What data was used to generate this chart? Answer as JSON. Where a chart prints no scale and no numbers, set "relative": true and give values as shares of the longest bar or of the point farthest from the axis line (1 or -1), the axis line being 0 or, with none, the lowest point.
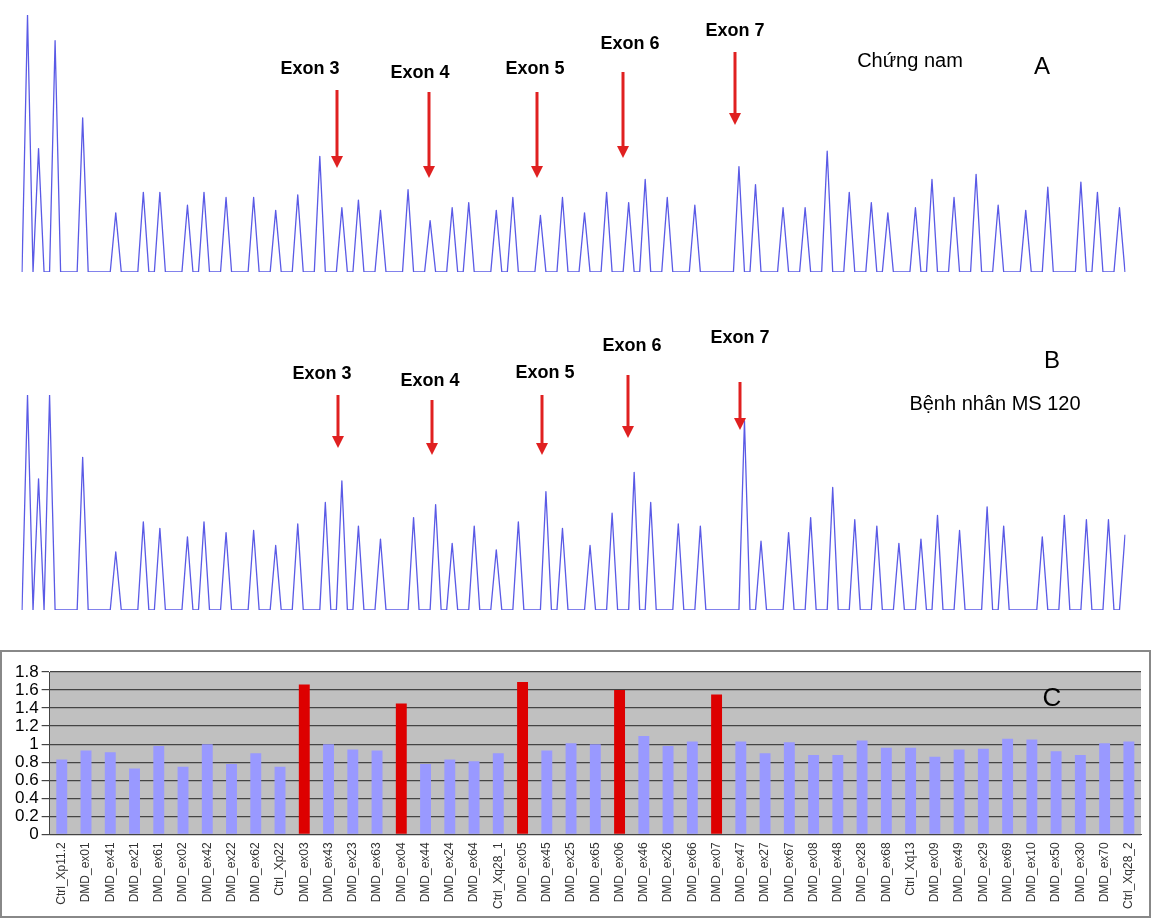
{
  "chart_data": [
    {
      "type": "line",
      "relative": true,
      "marker": "none",
      "grid": false,
      "legend": false,
      "categories": [
        null,
        null,
        null,
        null,
        null,
        null,
        null,
        null,
        null,
        null,
        null,
        null,
        null,
        null,
        null,
        null,
        null,
        null,
        null,
        null,
        null,
        null,
        null,
        null,
        null,
        null,
        null,
        null,
        null,
        null,
        null,
        null,
        null,
        null,
        null,
        null,
        null,
        null,
        null,
        null,
        null,
        null,
        null,
        null,
        null,
        null,
        null,
        null,
        null,
        null,
        null,
        null,
        null,
        null,
        null,
        null,
        null,
        null,
        null,
        null,
        null,
        null,
        null,
        null,
        null,
        null,
        null,
        null,
        null,
        null,
        null,
        null,
        null,
        null,
        null,
        null,
        null,
        null,
        null,
        null,
        null,
        null,
        null,
        null,
        null,
        null,
        null,
        null,
        null,
        null,
        null,
        null,
        null,
        null,
        null,
        null,
        null,
        null,
        null,
        null,
        null,
        null,
        null,
        null,
        null,
        null,
        null,
        null,
        null,
        null,
        null,
        null,
        null,
        null,
        null,
        null,
        null,
        null,
        null,
        null,
        null,
        null,
        null,
        null,
        null,
        null,
        null,
        null,
        null,
        null,
        null,
        null,
        null,
        null,
        null,
        null,
        null,
        null,
        null,
        null,
        null,
        null,
        null,
        null,
        null,
        null,
        null,
        null,
        null,
        null,
        null,
        null,
        null,
        null,
        null,
        null,
        null,
        null,
        null,
        null,
        null,
        null,
        null,
        null,
        null,
        null,
        null,
        null,
        null,
        null,
        null,
        null,
        null,
        null,
        null,
        null,
        null,
        null,
        null,
        null,
        null,
        null,
        null,
        null,
        null,
        null,
        null,
        null,
        null,
        null,
        null,
        null,
        null,
        null,
        null,
        null,
        null,
        null,
        null,
        null,
        null
      ],
      "series": [
        {
          "color": "#5a5ae6",
          "values": [
            0,
            1.0,
            0,
            0.48,
            0,
            0,
            0.9,
            0,
            0,
            0,
            0,
            0.6,
            0,
            0,
            0,
            0,
            0,
            0.23,
            0,
            0,
            0,
            0,
            0.31,
            0,
            0,
            0.31,
            0,
            0,
            0,
            0,
            0.26,
            0,
            0,
            0.31,
            0,
            0,
            0,
            0.29,
            0,
            0,
            0,
            0,
            0.29,
            0,
            0,
            0,
            0.24,
            0,
            0,
            0,
            0.3,
            0,
            0,
            0,
            0.45,
            0,
            0,
            0,
            0.25,
            0,
            0,
            0.28,
            0,
            0,
            0,
            0.24,
            0,
            0,
            0,
            0,
            0.32,
            0,
            0,
            0,
            0.2,
            0,
            0,
            0,
            0.25,
            0,
            0,
            0.27,
            0,
            0,
            0,
            0,
            0.24,
            0,
            0,
            0.29,
            0,
            0,
            0,
            0,
            0.22,
            0,
            0,
            0,
            0.29,
            0,
            0,
            0,
            0.23,
            0,
            0,
            0,
            0.31,
            0,
            0,
            0,
            0.27,
            0,
            0,
            0.36,
            0,
            0,
            0,
            0.29,
            0,
            0,
            0,
            0,
            0.26,
            0,
            0,
            0,
            0,
            0,
            0,
            0,
            0.41,
            0,
            0,
            0.34,
            0,
            0,
            0,
            0,
            0.25,
            0,
            0,
            0,
            0.25,
            0,
            0,
            0,
            0.47,
            0,
            0,
            0,
            0.31,
            0,
            0,
            0,
            0.27,
            0,
            0,
            0.23,
            0,
            0,
            0,
            0,
            0.25,
            0,
            0,
            0.36,
            0,
            0,
            0,
            0.29,
            0,
            0,
            0,
            0.38,
            0,
            0,
            0,
            0.26,
            0,
            0,
            0,
            0,
            0.24,
            0,
            0,
            0,
            0.33,
            0,
            0,
            0,
            0,
            0,
            0.35,
            0,
            0,
            0.31,
            0,
            0,
            0,
            0.25,
            0
          ]
        }
      ],
      "annotations": [
        "Exon 3",
        "Exon 4",
        "Exon 5",
        "Exon 6",
        "Exon 7",
        "Chứng nam",
        "A"
      ]
    },
    {
      "type": "line",
      "relative": true,
      "marker": "none",
      "grid": false,
      "legend": false,
      "categories": [
        null,
        null,
        null,
        null,
        null,
        null,
        null,
        null,
        null,
        null,
        null,
        null,
        null,
        null,
        null,
        null,
        null,
        null,
        null,
        null,
        null,
        null,
        null,
        null,
        null,
        null,
        null,
        null,
        null,
        null,
        null,
        null,
        null,
        null,
        null,
        null,
        null,
        null,
        null,
        null,
        null,
        null,
        null,
        null,
        null,
        null,
        null,
        null,
        null,
        null,
        null,
        null,
        null,
        null,
        null,
        null,
        null,
        null,
        null,
        null,
        null,
        null,
        null,
        null,
        null,
        null,
        null,
        null,
        null,
        null,
        null,
        null,
        null,
        null,
        null,
        null,
        null,
        null,
        null,
        null,
        null,
        null,
        null,
        null,
        null,
        null,
        null,
        null,
        null,
        null,
        null,
        null,
        null,
        null,
        null,
        null,
        null,
        null,
        null,
        null,
        null,
        null,
        null,
        null,
        null,
        null,
        null,
        null,
        null,
        null,
        null,
        null,
        null,
        null,
        null,
        null,
        null,
        null,
        null,
        null,
        null,
        null,
        null,
        null,
        null,
        null,
        null,
        null,
        null,
        null,
        null,
        null,
        null,
        null,
        null,
        null,
        null,
        null,
        null,
        null,
        null,
        null,
        null,
        null,
        null,
        null,
        null,
        null,
        null,
        null,
        null,
        null,
        null,
        null,
        null,
        null,
        null,
        null,
        null,
        null,
        null,
        null,
        null,
        null,
        null,
        null,
        null,
        null,
        null,
        null,
        null,
        null,
        null,
        null,
        null,
        null,
        null,
        null,
        null,
        null,
        null,
        null,
        null,
        null,
        null,
        null,
        null,
        null,
        null,
        null,
        null,
        null,
        null,
        null,
        null,
        null,
        null,
        null,
        null,
        null,
        null
      ],
      "series": [
        {
          "color": "#5a5ae6",
          "values": [
            0,
            1,
            0,
            0.61,
            0,
            1,
            0,
            0,
            0,
            0,
            0,
            0.71,
            0,
            0,
            0,
            0,
            0,
            0.27,
            0,
            0,
            0,
            0,
            0.41,
            0,
            0,
            0.38,
            0,
            0,
            0,
            0,
            0.34,
            0,
            0,
            0.41,
            0,
            0,
            0,
            0.36,
            0,
            0,
            0,
            0,
            0.37,
            0,
            0,
            0,
            0.3,
            0,
            0,
            0,
            0.4,
            0,
            0,
            0,
            0,
            0.5,
            0,
            0,
            0.6,
            0,
            0,
            0.39,
            0,
            0,
            0,
            0.33,
            0,
            0,
            0,
            0,
            0,
            0.43,
            0,
            0,
            0,
            0.49,
            0,
            0,
            0.31,
            0,
            0,
            0,
            0.39,
            0,
            0,
            0,
            0.28,
            0,
            0,
            0,
            0.41,
            0,
            0,
            0,
            0,
            0.55,
            0,
            0,
            0.38,
            0,
            0,
            0,
            0,
            0.3,
            0,
            0,
            0,
            0.45,
            0,
            0,
            0,
            0.64,
            0,
            0,
            0.5,
            0,
            0,
            0,
            0,
            0.4,
            0,
            0,
            0,
            0.39,
            0,
            0,
            0,
            0,
            0,
            0,
            0,
            0.88,
            0,
            0,
            0.32,
            0,
            0,
            0,
            0,
            0.36,
            0,
            0,
            0,
            0.43,
            0,
            0,
            0,
            0.57,
            0,
            0,
            0,
            0.42,
            0,
            0,
            0,
            0.39,
            0,
            0,
            0,
            0.31,
            0,
            0,
            0,
            0.33,
            0,
            0,
            0.44,
            0,
            0,
            0,
            0.37,
            0,
            0,
            0,
            0,
            0.48,
            0,
            0,
            0.39,
            0,
            0,
            0,
            0,
            0,
            0,
            0.34,
            0,
            0,
            0,
            0.44,
            0,
            0,
            0,
            0.42,
            0,
            0,
            0,
            0.42,
            0,
            0,
            0.35
          ]
        }
      ],
      "annotations": [
        "Exon 3",
        "Exon 4",
        "Exon 5",
        "Exon 6",
        "Exon 7",
        "B",
        "Bệnh nhân MS 120"
      ]
    },
    {
      "type": "bar",
      "grid": "y",
      "legend": false,
      "categories": [
        "Ctrl_Xp11.2",
        "DMD_ex01",
        "DMD_ex41",
        "DMD_ex21",
        "DMD_ex61",
        "DMD_ex02",
        "DMD_ex42",
        "DMD_ex22",
        "DMD_ex62",
        "Ctrl_Xp22",
        "DMD_ex03",
        "DMD_ex43",
        "DMD_ex23",
        "DMD_ex63",
        "DMD_ex04",
        "DMD_ex44",
        "DMD_ex24",
        "DMD_ex64",
        "Ctrl_Xq28_1",
        "DMD_ex05",
        "DMD_ex45",
        "DMD_ex25",
        "DMD_ex65",
        "DMD_ex06",
        "DMD_ex46",
        "DMD_ex26",
        "DMD_ex66",
        "DMD_ex07",
        "DMD_ex47",
        "DMD_ex27",
        "DMD_ex67",
        "DMD_ex08",
        "DMD_ex48",
        "DMD_ex28",
        "DMD_ex68",
        "Ctrl_Xq13",
        "DMD_ex09",
        "DMD_ex49",
        "DMD_ex29",
        "DMD_ex69",
        "DMD_ex10",
        "DMD_ex50",
        "DMD_ex30",
        "DMD_ex70",
        "Ctrl_Xq28_2"
      ],
      "values": [
        0.83,
        0.93,
        0.91,
        0.73,
        0.98,
        0.75,
        1.0,
        0.78,
        0.9,
        0.75,
        1.66,
        1.0,
        0.94,
        0.93,
        1.45,
        0.78,
        0.83,
        0.81,
        0.9,
        1.69,
        0.93,
        1.01,
        1.0,
        1.6,
        1.09,
        0.98,
        1.03,
        1.55,
        1.03,
        0.9,
        1.02,
        0.88,
        0.88,
        1.04,
        0.96,
        0.96,
        0.86,
        0.94,
        0.95,
        1.06,
        1.05,
        0.92,
        0.88,
        1.01,
        1.03
      ],
      "colors": [
        "#9999ff",
        "#9999ff",
        "#9999ff",
        "#9999ff",
        "#9999ff",
        "#9999ff",
        "#9999ff",
        "#9999ff",
        "#9999ff",
        "#9999ff",
        "#dd0000",
        "#9999ff",
        "#9999ff",
        "#9999ff",
        "#dd0000",
        "#9999ff",
        "#9999ff",
        "#9999ff",
        "#9999ff",
        "#dd0000",
        "#9999ff",
        "#9999ff",
        "#9999ff",
        "#dd0000",
        "#9999ff",
        "#9999ff",
        "#9999ff",
        "#dd0000",
        "#9999ff",
        "#9999ff",
        "#9999ff",
        "#9999ff",
        "#9999ff",
        "#9999ff",
        "#9999ff",
        "#9999ff",
        "#9999ff",
        "#9999ff",
        "#9999ff",
        "#9999ff",
        "#9999ff",
        "#9999ff",
        "#9999ff",
        "#9999ff",
        "#9999ff"
      ],
      "ylim": [
        0,
        1.8
      ],
      "yticks": [
        0,
        0.2,
        0.4,
        0.6,
        0.8,
        1,
        1.2,
        1.4,
        1.6,
        1.8
      ],
      "annotations": [
        "C"
      ]
    }
  ]
}
